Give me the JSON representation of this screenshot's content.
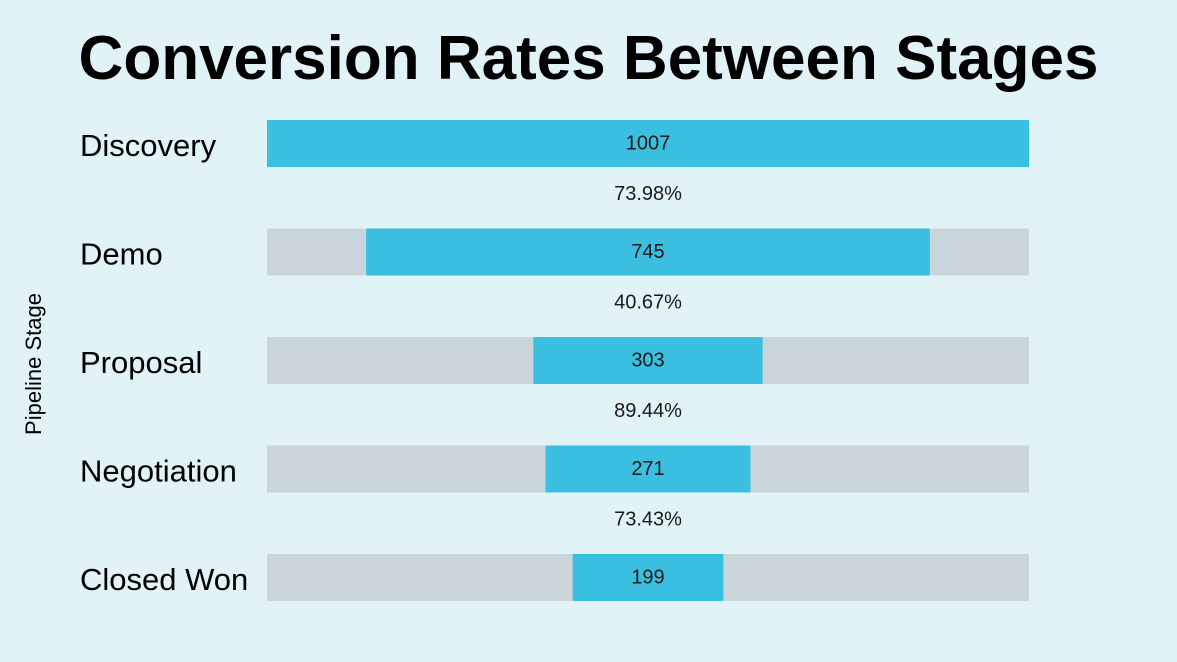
{
  "chart_data": {
    "type": "bar",
    "subtype": "funnel",
    "title": "Conversion Rates Between Stages",
    "ylabel": "Pipeline Stage",
    "categories": [
      "Discovery",
      "Demo",
      "Proposal",
      "Negotiation",
      "Closed Won"
    ],
    "values": [
      1007,
      745,
      303,
      271,
      199
    ],
    "conversion_labels": [
      "73.98%",
      "40.67%",
      "89.44%",
      "73.43%"
    ],
    "bar_color": "#3bbfe0",
    "track_color": "#c9d5db",
    "background_color": "#e1f3f6"
  }
}
